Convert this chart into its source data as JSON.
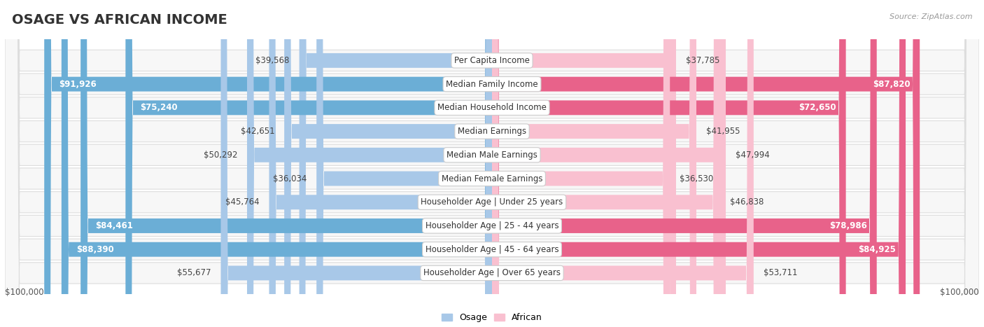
{
  "title": "OSAGE VS AFRICAN INCOME",
  "source": "Source: ZipAtlas.com",
  "categories": [
    "Per Capita Income",
    "Median Family Income",
    "Median Household Income",
    "Median Earnings",
    "Median Male Earnings",
    "Median Female Earnings",
    "Householder Age | Under 25 years",
    "Householder Age | 25 - 44 years",
    "Householder Age | 45 - 64 years",
    "Householder Age | Over 65 years"
  ],
  "osage_values": [
    39568,
    91926,
    75240,
    42651,
    50292,
    36034,
    45764,
    84461,
    88390,
    55677
  ],
  "african_values": [
    37785,
    87820,
    72650,
    41955,
    47994,
    36530,
    46838,
    78986,
    84925,
    53711
  ],
  "osage_color_light": "#A8C8E8",
  "osage_color_dark": "#6BAED6",
  "african_color_light": "#F9C0D0",
  "african_color_dark": "#E8628A",
  "max_value": 100000,
  "xlabel_left": "$100,000",
  "xlabel_right": "$100,000",
  "bg_color": "#ffffff",
  "row_bg": "#f7f7f7",
  "row_border": "#dddddd",
  "title_fontsize": 14,
  "label_fontsize": 8.5,
  "value_fontsize": 8.5,
  "legend_fontsize": 9,
  "dark_threshold": 70000
}
